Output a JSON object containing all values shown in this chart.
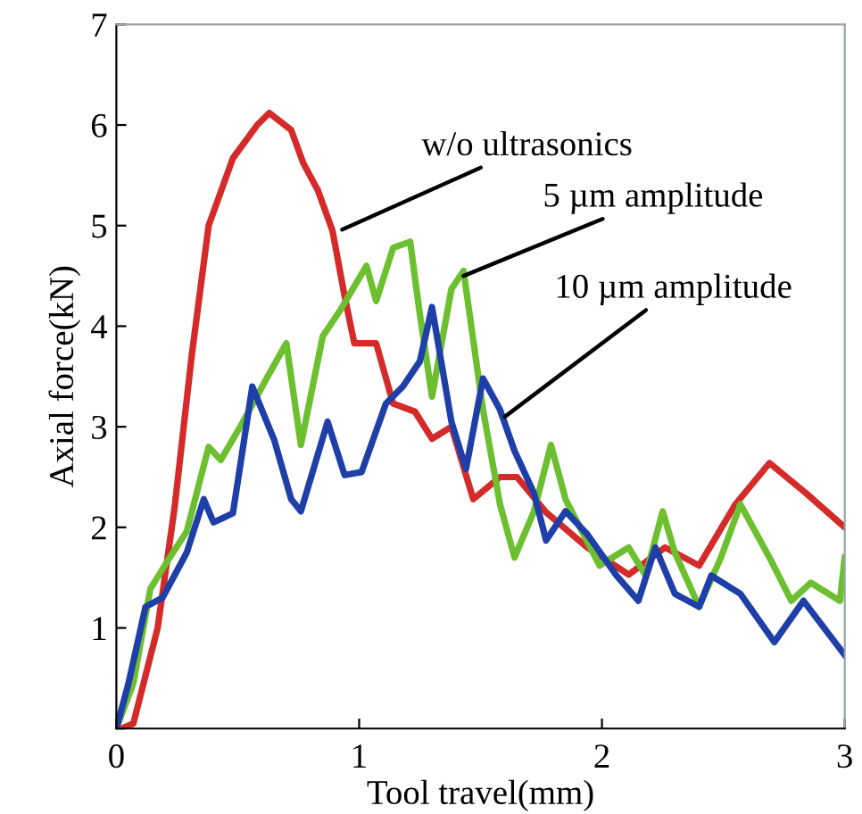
{
  "chart_data": {
    "type": "line",
    "xlabel": "Tool travel(mm)",
    "ylabel": "Axial force(kN)",
    "xlim": [
      0,
      3
    ],
    "ylim": [
      0,
      7
    ],
    "xticks": [
      0,
      1,
      2,
      3
    ],
    "yticks": [
      {
        "value": 0,
        "label": null
      },
      1,
      2,
      3,
      4,
      5,
      6,
      7
    ],
    "grid": false,
    "legend": false,
    "series": [
      {
        "color": "#d42a2a",
        "x": [
          0.02,
          0.07,
          0.17,
          0.24,
          0.31,
          0.38,
          0.48,
          0.58,
          0.63,
          0.72,
          0.77,
          0.83,
          0.89,
          0.94,
          0.98,
          1.07,
          1.14,
          1.23,
          1.3,
          1.38,
          1.47,
          1.58,
          1.65,
          1.77,
          1.94,
          2.11,
          2.26,
          2.4,
          2.55,
          2.69,
          2.84,
          3.0
        ],
        "values": [
          0,
          0.05,
          1.0,
          2.2,
          3.7,
          5.0,
          5.67,
          6.0,
          6.12,
          5.95,
          5.62,
          5.35,
          4.95,
          4.3,
          3.83,
          3.83,
          3.23,
          3.15,
          2.88,
          3.0,
          2.28,
          2.5,
          2.5,
          2.15,
          1.8,
          1.53,
          1.8,
          1.62,
          2.23,
          2.64,
          2.34,
          2.0
        ]
      },
      {
        "color": "#6cbf2e",
        "x": [
          0,
          0.07,
          0.14,
          0.22,
          0.29,
          0.38,
          0.43,
          0.51,
          0.63,
          0.7,
          0.76,
          0.85,
          0.92,
          1.03,
          1.07,
          1.14,
          1.21,
          1.25,
          1.3,
          1.38,
          1.43,
          1.51,
          1.58,
          1.64,
          1.72,
          1.79,
          1.85,
          1.99,
          2.11,
          2.18,
          2.25,
          2.3,
          2.4,
          2.49,
          2.57,
          2.69,
          2.78,
          2.86,
          2.98,
          3.0
        ],
        "values": [
          0,
          0.45,
          1.39,
          1.7,
          1.96,
          2.8,
          2.67,
          3.0,
          3.53,
          3.83,
          2.82,
          3.9,
          4.15,
          4.6,
          4.25,
          4.78,
          4.84,
          4.12,
          3.3,
          4.37,
          4.55,
          3.17,
          2.23,
          1.7,
          2.16,
          2.82,
          2.28,
          1.62,
          1.8,
          1.52,
          2.16,
          1.75,
          1.21,
          1.7,
          2.23,
          1.7,
          1.27,
          1.45,
          1.27,
          1.7
        ]
      },
      {
        "color": "#1f3fa8",
        "x": [
          0,
          0.05,
          0.12,
          0.19,
          0.29,
          0.36,
          0.4,
          0.48,
          0.56,
          0.65,
          0.72,
          0.76,
          0.87,
          0.94,
          1.01,
          1.11,
          1.18,
          1.25,
          1.3,
          1.38,
          1.44,
          1.51,
          1.58,
          1.64,
          1.72,
          1.77,
          1.85,
          1.94,
          2.06,
          2.15,
          2.22,
          2.3,
          2.4,
          2.45,
          2.57,
          2.71,
          2.83,
          3.0
        ],
        "values": [
          0,
          0.45,
          1.21,
          1.3,
          1.75,
          2.28,
          2.05,
          2.14,
          3.4,
          2.87,
          2.28,
          2.16,
          3.05,
          2.52,
          2.55,
          3.23,
          3.4,
          3.65,
          4.19,
          3.05,
          2.58,
          3.48,
          3.17,
          2.76,
          2.34,
          1.87,
          2.16,
          1.93,
          1.52,
          1.27,
          1.8,
          1.34,
          1.21,
          1.52,
          1.34,
          0.86,
          1.27,
          0.73
        ]
      }
    ],
    "annotations": [
      {
        "text": "w/o ultrasonics",
        "x": 0.93,
        "y": 4.96
      },
      {
        "text": "5 µm amplitude",
        "x": 1.43,
        "y": 4.5
      },
      {
        "text": "10 µm amplitude",
        "x": 1.6,
        "y": 3.1
      }
    ]
  }
}
